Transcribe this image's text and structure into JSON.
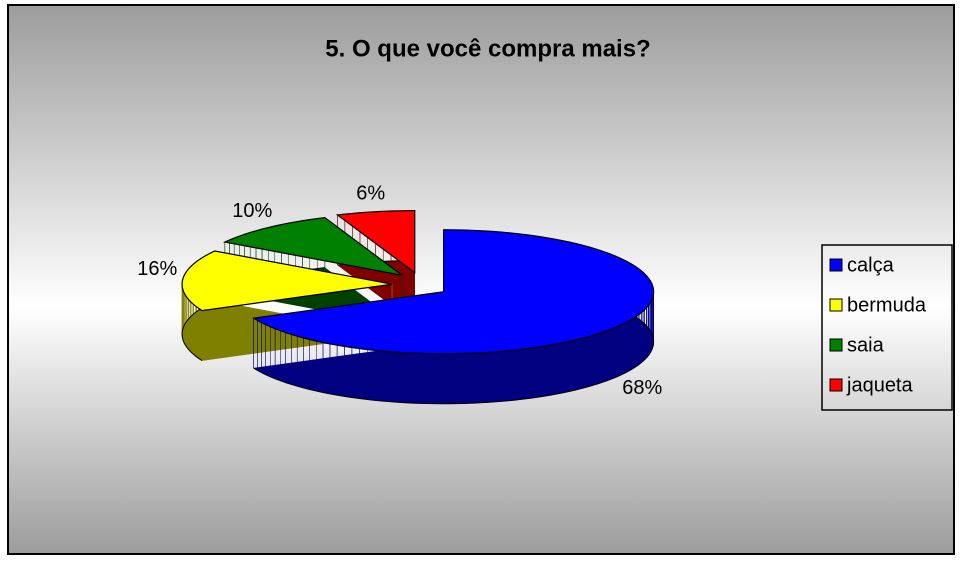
{
  "chart_data": {
    "type": "pie",
    "title": "5. O que você compra mais?",
    "categories": [
      "calça",
      "bermuda",
      "saia",
      "jaqueta"
    ],
    "values": [
      68,
      16,
      10,
      6
    ],
    "value_labels": [
      "68%",
      "16%",
      "10%",
      "6%"
    ],
    "colors": [
      "#0000ff",
      "#ffff00",
      "#008000",
      "#ff0000"
    ],
    "legend": "right"
  }
}
